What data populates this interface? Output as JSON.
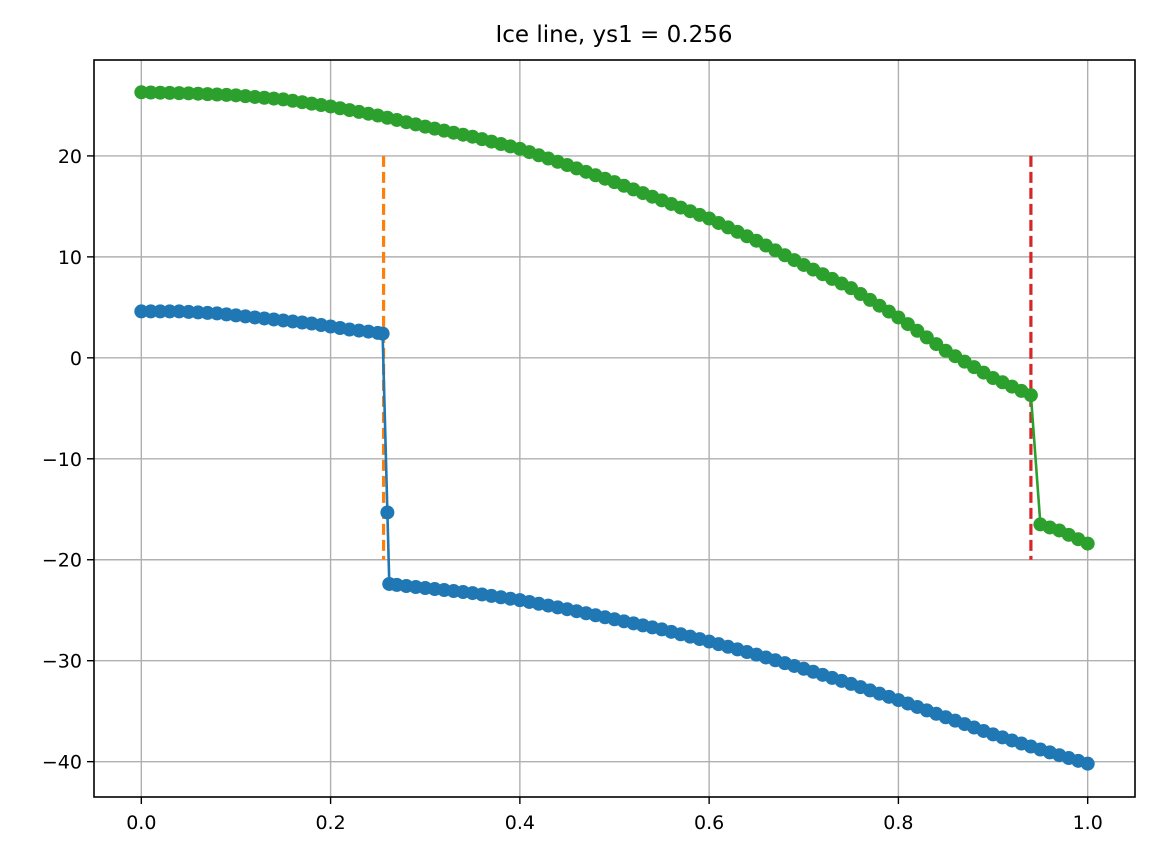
{
  "chart_data": {
    "type": "line",
    "title": "Ice line, ys1 = 0.256",
    "xlabel": "",
    "ylabel": "",
    "xlim": [
      -0.05,
      1.05
    ],
    "ylim": [
      -43.5,
      29.5
    ],
    "grid": true,
    "xticks": [
      0.0,
      0.2,
      0.4,
      0.6,
      0.8,
      1.0
    ],
    "xtick_labels": [
      "0.0",
      "0.2",
      "0.4",
      "0.6",
      "0.8",
      "1.0"
    ],
    "yticks": [
      20,
      10,
      0,
      -10,
      -20,
      -30,
      -40
    ],
    "ytick_labels": [
      "20",
      "10",
      "0",
      "−10",
      "−20",
      "−30",
      "−40"
    ],
    "colors": {
      "series1": "#1f77b4",
      "series2": "#2ca02c",
      "vline1": "#ff7f0e",
      "vline2": "#d62728",
      "grid": "#b0b0b0"
    },
    "series": [
      {
        "color": "#1f77b4",
        "x": [
          0.0,
          0.02,
          0.04,
          0.06,
          0.08,
          0.1,
          0.12,
          0.14,
          0.16,
          0.18,
          0.2,
          0.22,
          0.24,
          0.255,
          0.262,
          0.28,
          0.3,
          0.35,
          0.4,
          0.45,
          0.5,
          0.55,
          0.6,
          0.65,
          0.7,
          0.75,
          0.8,
          0.85,
          0.9,
          0.95,
          1.0
        ],
        "y": [
          4.6,
          4.6,
          4.6,
          4.5,
          4.4,
          4.2,
          4.0,
          3.8,
          3.6,
          3.4,
          3.1,
          2.8,
          2.6,
          2.4,
          -22.4,
          -22.6,
          -22.8,
          -23.3,
          -24.0,
          -24.9,
          -25.9,
          -26.9,
          -28.1,
          -29.4,
          -30.8,
          -32.3,
          -33.9,
          -35.6,
          -37.3,
          -38.8,
          -40.2
        ],
        "marker_step": 0.01
      },
      {
        "color": "#2ca02c",
        "x": [
          0.0,
          0.05,
          0.1,
          0.15,
          0.2,
          0.25,
          0.3,
          0.35,
          0.4,
          0.45,
          0.5,
          0.55,
          0.6,
          0.65,
          0.7,
          0.75,
          0.8,
          0.85,
          0.9,
          0.94,
          0.95,
          0.97,
          1.0
        ],
        "y": [
          26.3,
          26.2,
          26.0,
          25.6,
          24.9,
          24.0,
          22.9,
          21.9,
          20.7,
          19.1,
          17.4,
          15.6,
          13.8,
          11.6,
          9.2,
          6.9,
          4.0,
          0.7,
          -2.0,
          -3.7,
          -16.5,
          -17.1,
          -18.4
        ],
        "marker_step": 0.01
      }
    ],
    "vlines": [
      {
        "x": 0.256,
        "ymin": -20,
        "ymax": 20,
        "color": "#ff7f0e",
        "style": "dashed"
      },
      {
        "x": 0.94,
        "ymin": -20,
        "ymax": 20,
        "color": "#d62728",
        "style": "dashed"
      }
    ]
  }
}
